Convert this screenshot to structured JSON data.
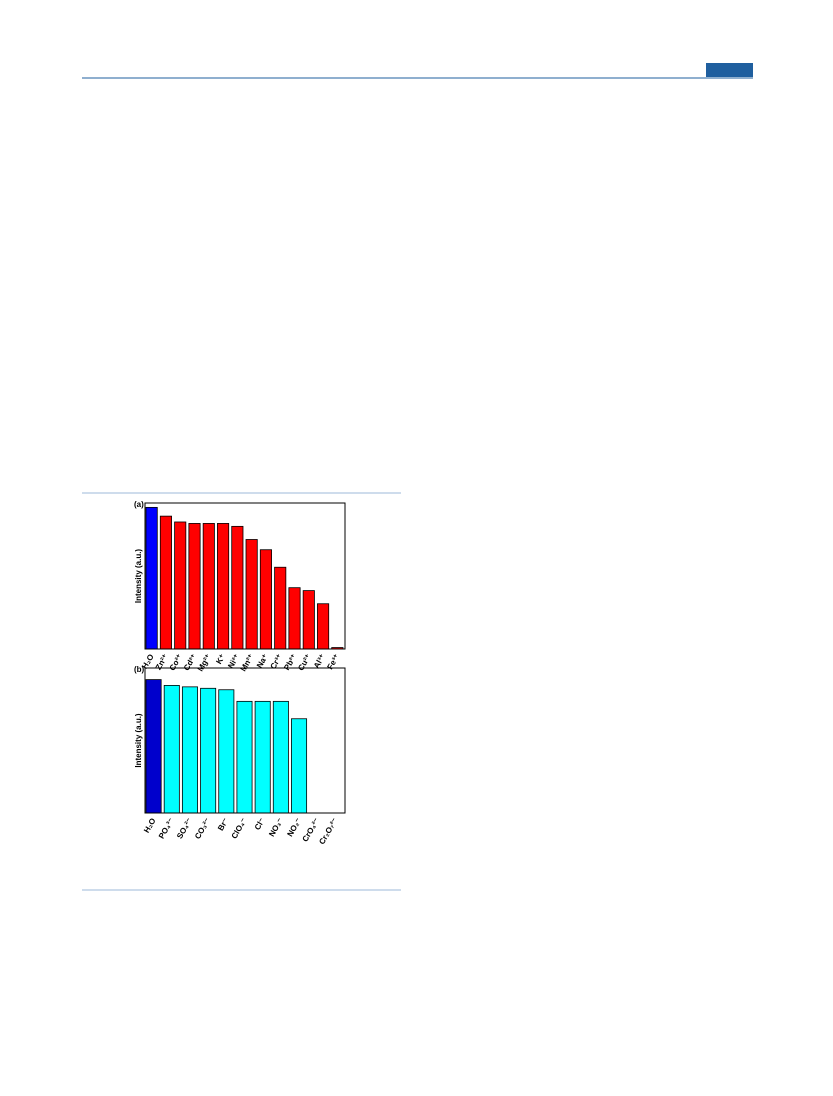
{
  "chart_data": [
    {
      "type": "bar",
      "panel_label": "(a)",
      "y_label": "Intensity (a.u.)",
      "categories": [
        "H₂O",
        "Zn²⁺",
        "Co²⁺",
        "Cd²⁺",
        "Mg²⁺",
        "K⁺",
        "Ni²⁺",
        "Mn²⁺",
        "Na⁺",
        "Cr³⁺",
        "Pb²⁺",
        "Cu²⁺",
        "Al³⁺",
        "Fe³⁺"
      ],
      "values": [
        97,
        91,
        87,
        86,
        86,
        86,
        84,
        75,
        68,
        56,
        42,
        40,
        31,
        1
      ],
      "colors": [
        "#0000ff",
        "#ff0000",
        "#ff0000",
        "#ff0000",
        "#ff0000",
        "#ff0000",
        "#ff0000",
        "#ff0000",
        "#ff0000",
        "#ff0000",
        "#ff0000",
        "#ff0000",
        "#ff0000",
        "#ff0000"
      ],
      "ylim": [
        0,
        100
      ]
    },
    {
      "type": "bar",
      "panel_label": "(b)",
      "y_label": "Intensity (a.u.)",
      "categories": [
        "H₂O",
        "PO₄³⁻",
        "SO₄²⁻",
        "CO₃²⁻",
        "Br⁻",
        "ClO₄⁻",
        "Cl⁻",
        "NO₃⁻",
        "NO₂⁻",
        "CrO₄²⁻",
        "Cr₂O₇²⁻"
      ],
      "values": [
        92,
        88,
        87,
        86,
        85,
        77,
        77,
        77,
        65,
        0,
        0
      ],
      "colors": [
        "#0000cc",
        "#00ffff",
        "#00ffff",
        "#00ffff",
        "#00ffff",
        "#00ffff",
        "#00ffff",
        "#00ffff",
        "#00ffff",
        "#00ffff",
        "#00ffff"
      ],
      "ylim": [
        0,
        100
      ]
    }
  ]
}
